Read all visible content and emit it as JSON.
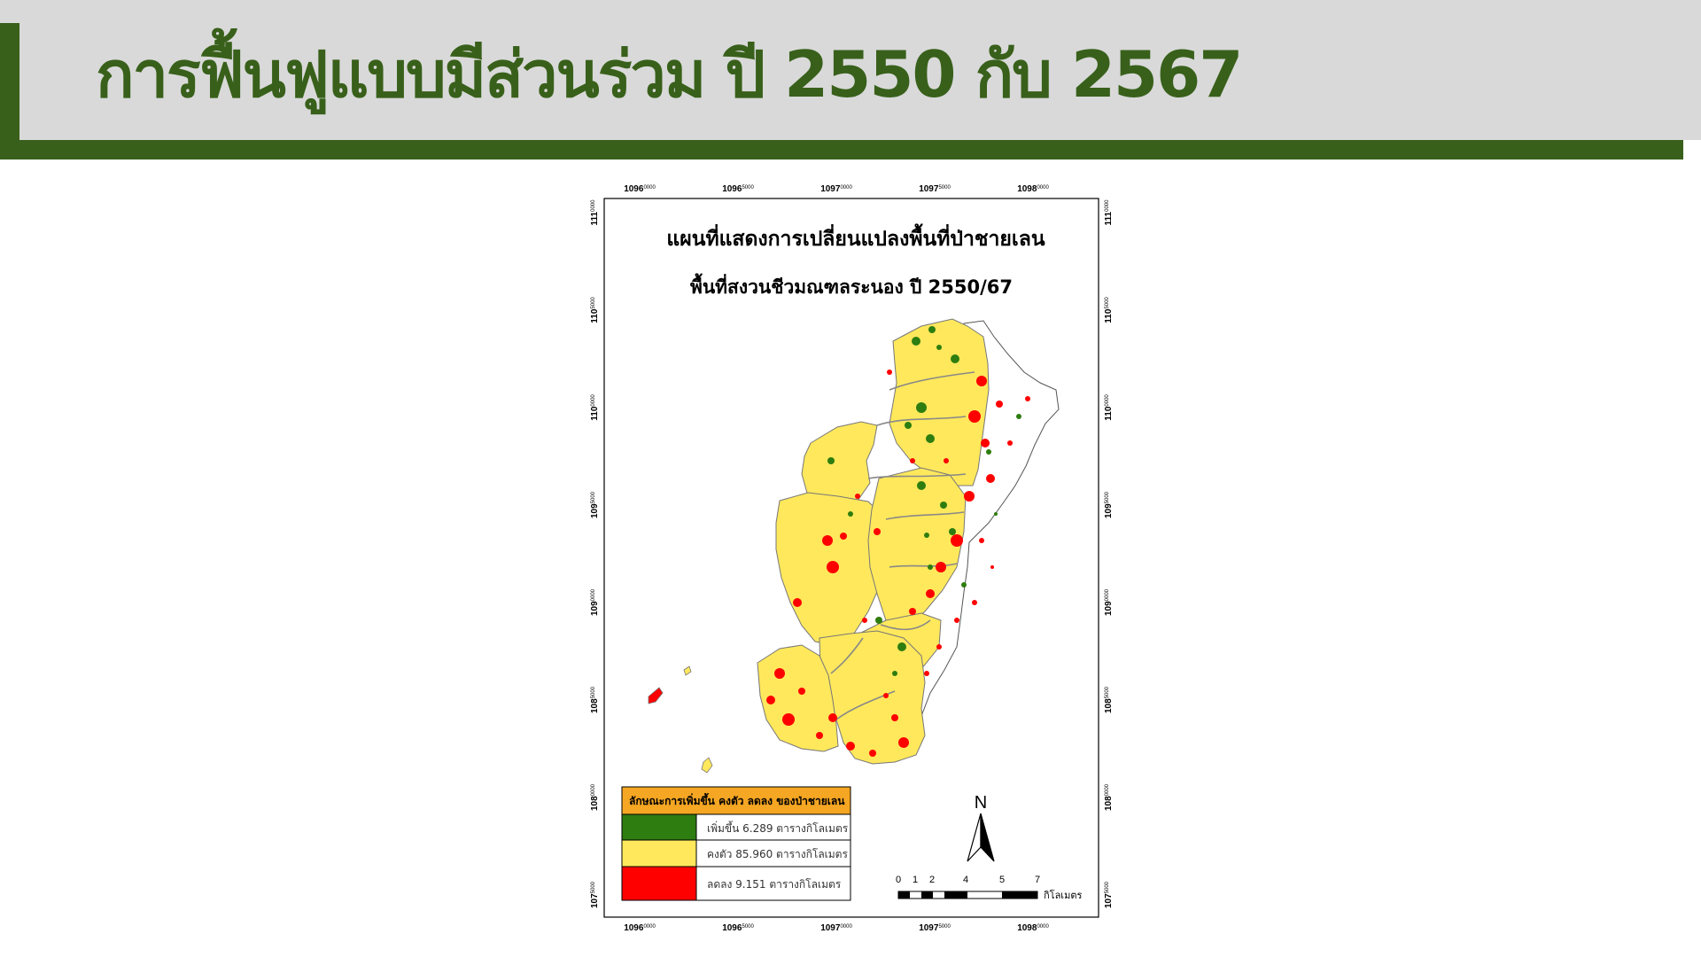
{
  "header": {
    "title": "การฟื้นฟูแบบมีส่วนร่วม ปี 2550 กับ 2567"
  },
  "map": {
    "title_line1": "แผนที่แสดงการเปลี่ยนแปลงพื้นที่ป่าชายเลน",
    "title_line2": "พื้นที่สงวนชีวมณฑลระนอง ปี 2550/67",
    "x_ticks": [
      {
        "main": "1096",
        "sub": "0000"
      },
      {
        "main": "1096",
        "sub": "5000"
      },
      {
        "main": "1097",
        "sub": "0000"
      },
      {
        "main": "1097",
        "sub": "5000"
      },
      {
        "main": "1098",
        "sub": "0000"
      }
    ],
    "y_ticks": [
      {
        "main": "111",
        "sub": "0000"
      },
      {
        "main": "110",
        "sub": "5000"
      },
      {
        "main": "110",
        "sub": "0000"
      },
      {
        "main": "109",
        "sub": "5000"
      },
      {
        "main": "109",
        "sub": "0000"
      },
      {
        "main": "108",
        "sub": "5000"
      },
      {
        "main": "108",
        "sub": "0000"
      },
      {
        "main": "107",
        "sub": "5000"
      }
    ],
    "legend": {
      "title": "ลักษณะการเพิ่มขึ้น คงตัว ลดลง ของป่าชายเลน",
      "items": [
        {
          "label": "เพิ่มขึ้น 6.289 ตารางกิโลเมตร",
          "color": "#2e7d10"
        },
        {
          "label": "คงตัว 85.960 ตารางกิโลเมตร",
          "color": "#ffe85c"
        },
        {
          "label": "ลดลง 9.151 ตารางกิโลเมตร",
          "color": "#ff0000"
        }
      ],
      "header_color": "#f5a623"
    },
    "north_label": "N",
    "scale": {
      "ticks": [
        "0",
        "1",
        "2",
        "4",
        "5",
        "7"
      ],
      "unit": "กิโลเมตร"
    }
  },
  "colors": {
    "header_green": "#38601a",
    "header_grey": "#d9d9d9",
    "increase": "#2e7d10",
    "stable": "#ffe85c",
    "decrease": "#ff0000"
  }
}
